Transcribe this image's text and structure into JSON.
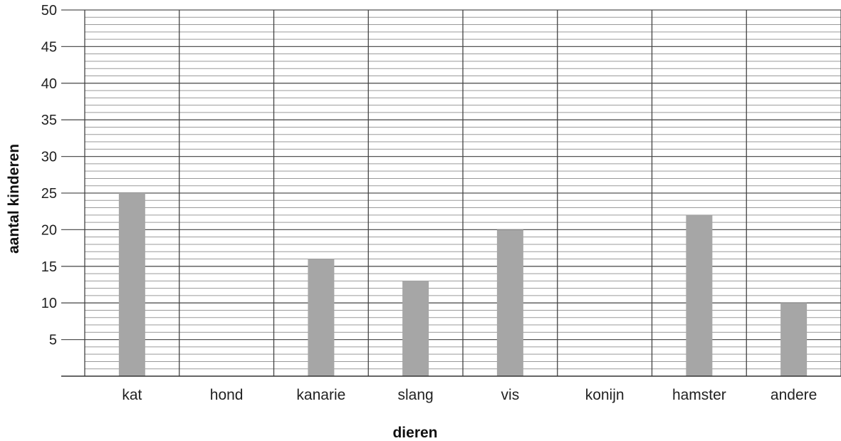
{
  "chart_data": {
    "type": "bar",
    "title": "",
    "xlabel": "dieren",
    "ylabel": "aantal kinderen",
    "categories": [
      "kat",
      "hond",
      "kanarie",
      "slang",
      "vis",
      "konijn",
      "hamster",
      "andere"
    ],
    "values": [
      25,
      null,
      16,
      13,
      20,
      null,
      22,
      10
    ],
    "ylim": [
      0,
      50
    ],
    "yticks": [
      5,
      10,
      15,
      20,
      25,
      30,
      35,
      40,
      45,
      50
    ],
    "minor_grid_step": 1,
    "grid": true,
    "bar_color": "#a6a6a6",
    "major_grid_color": "#555555",
    "minor_grid_color": "#9a9a9a"
  }
}
